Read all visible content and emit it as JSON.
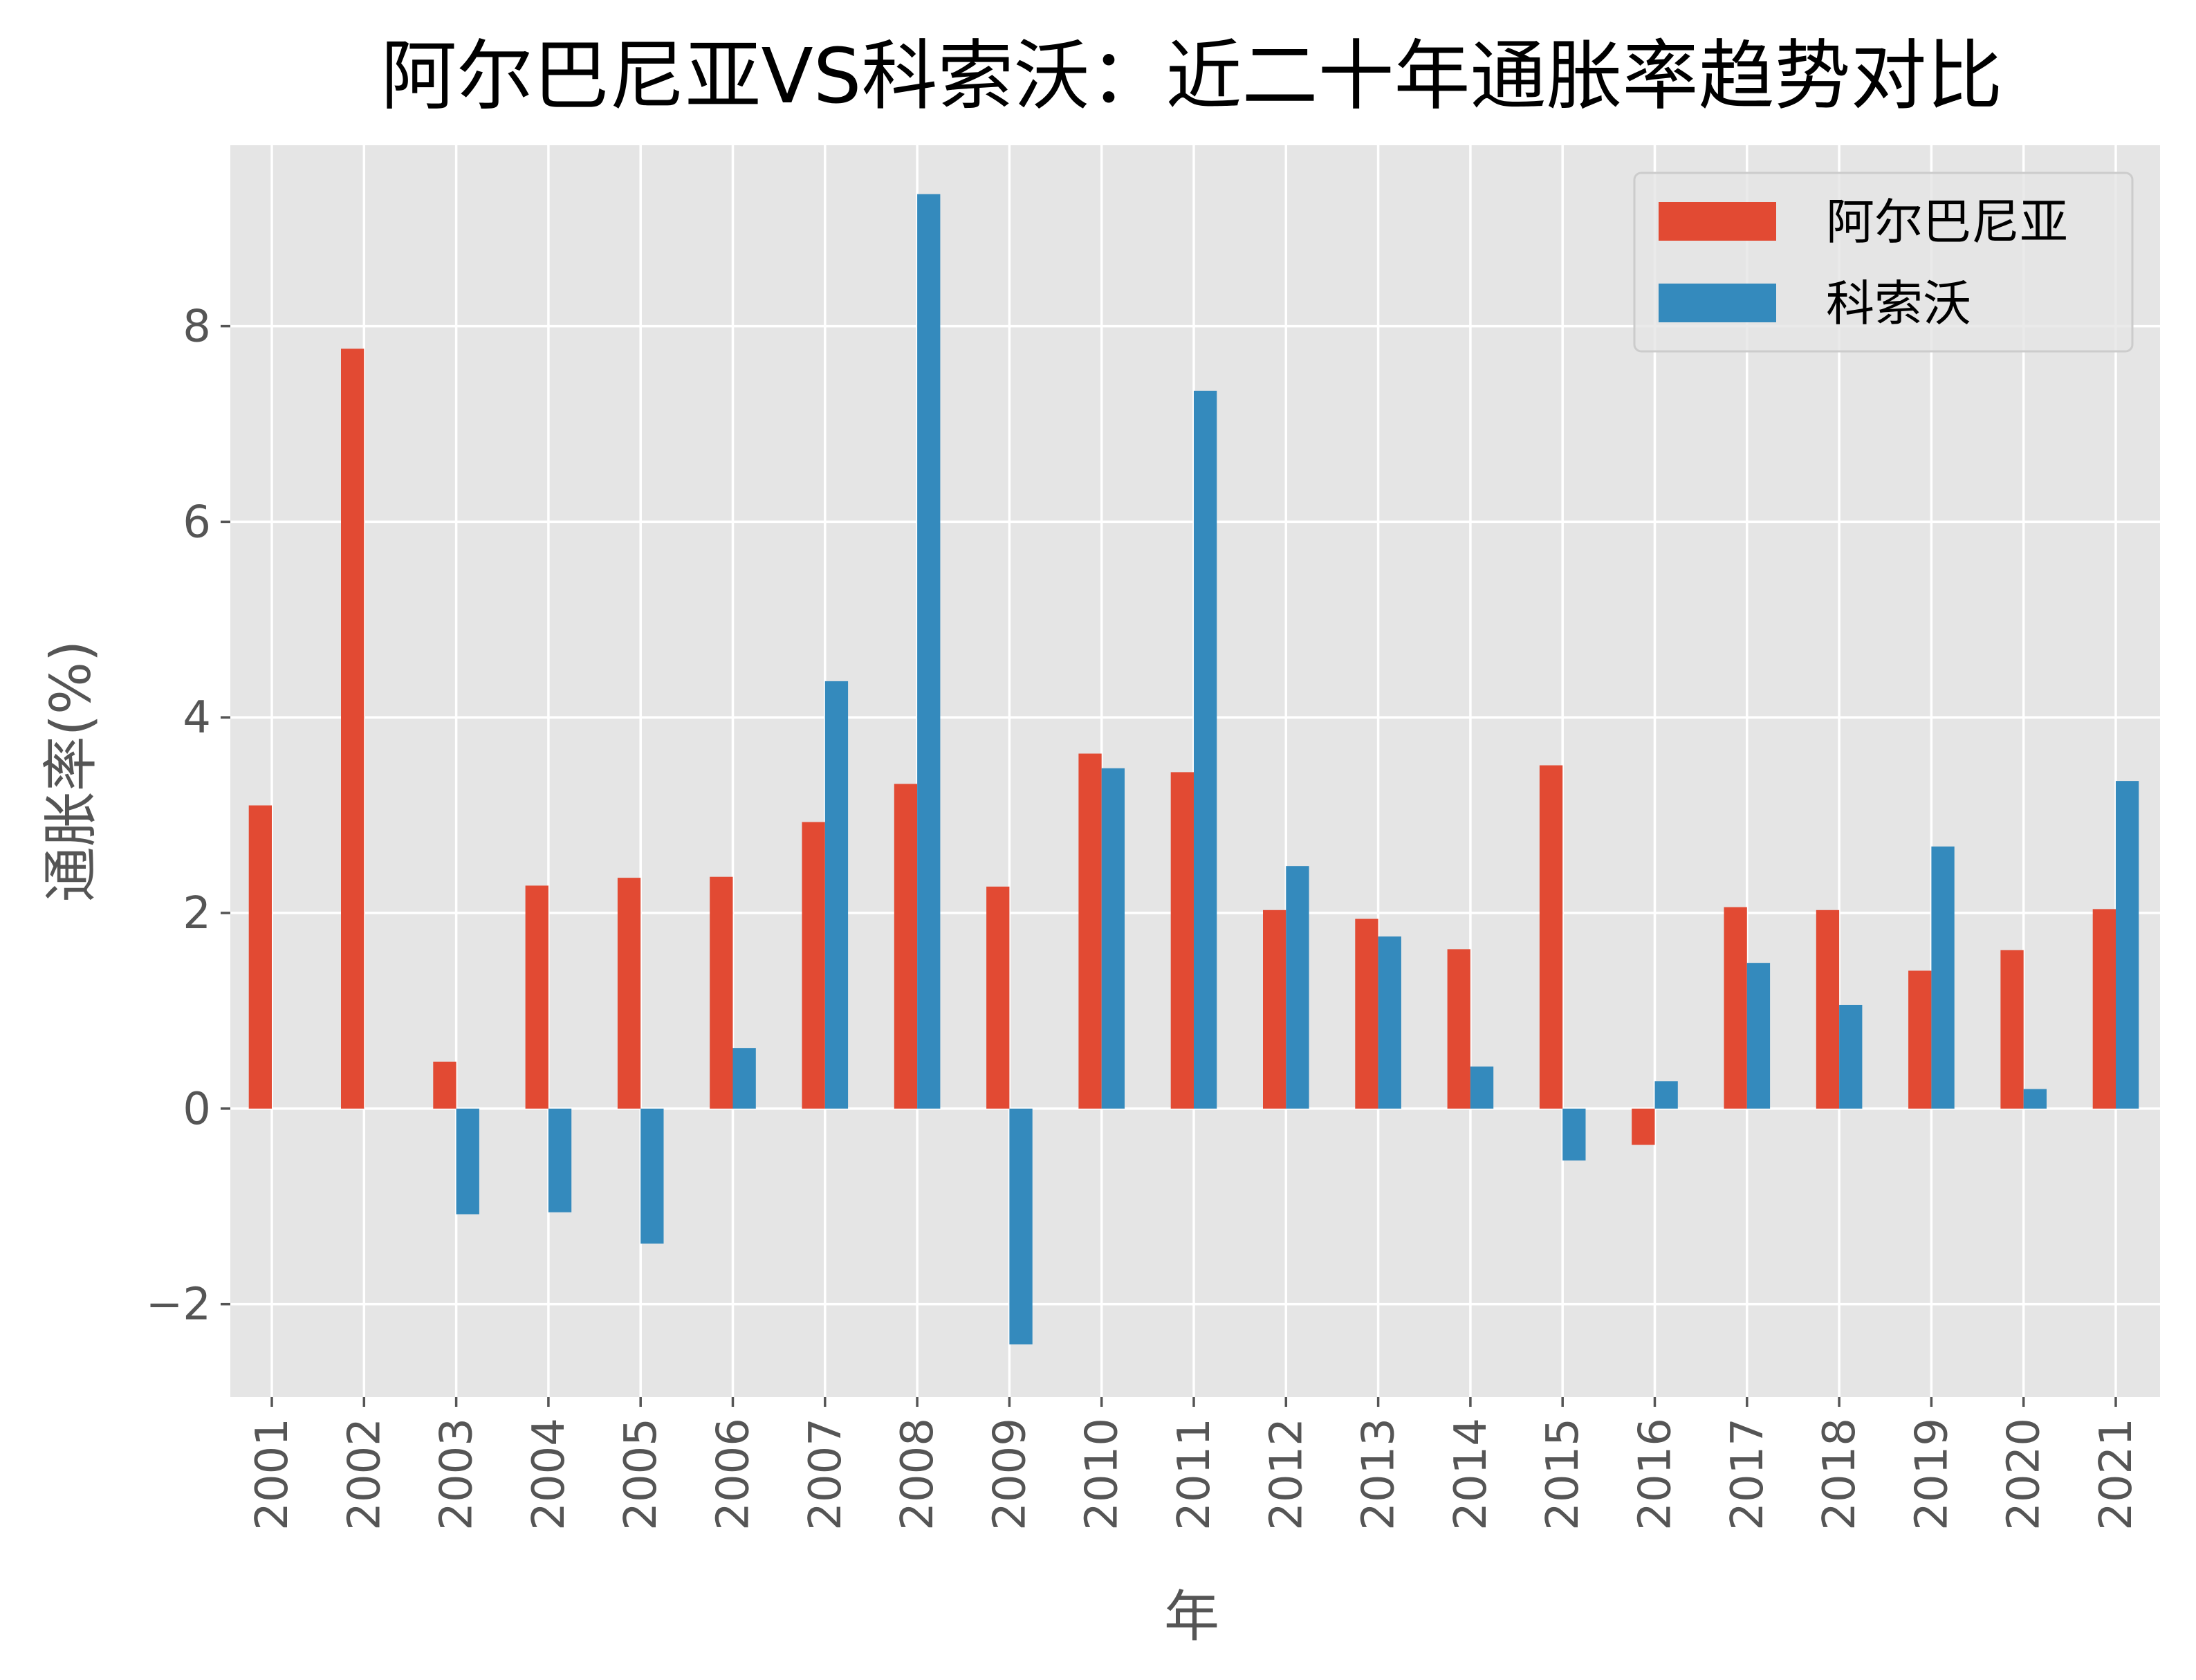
{
  "chart_data": {
    "type": "bar",
    "title": "阿尔巴尼亚VS科索沃：近二十年通胀率趋势对比",
    "xlabel": "年",
    "ylabel": "通胀率(%)",
    "categories": [
      "2001",
      "2002",
      "2003",
      "2004",
      "2005",
      "2006",
      "2007",
      "2008",
      "2009",
      "2010",
      "2011",
      "2012",
      "2013",
      "2014",
      "2015",
      "2016",
      "2017",
      "2018",
      "2019",
      "2020",
      "2021"
    ],
    "series": [
      {
        "name": "阿尔巴尼亚",
        "color": "#E24A33",
        "values": [
          3.1,
          7.77,
          0.48,
          2.28,
          2.36,
          2.37,
          2.93,
          3.32,
          2.27,
          3.63,
          3.44,
          2.03,
          1.94,
          1.63,
          3.51,
          -0.37,
          2.06,
          2.03,
          1.41,
          1.62,
          2.04
        ]
      },
      {
        "name": "科索沃",
        "color": "#348ABD",
        "values": [
          0,
          0,
          -1.08,
          -1.06,
          -1.38,
          0.62,
          4.37,
          9.35,
          -2.41,
          3.48,
          7.34,
          2.48,
          1.76,
          0.43,
          -0.53,
          0.28,
          1.49,
          1.06,
          2.68,
          0.2,
          3.35
        ]
      }
    ],
    "ylim": [
      -2.95,
      9.85
    ],
    "yticks": [
      -2,
      0,
      2,
      4,
      6,
      8
    ],
    "grid": true,
    "legend": "top-right"
  }
}
